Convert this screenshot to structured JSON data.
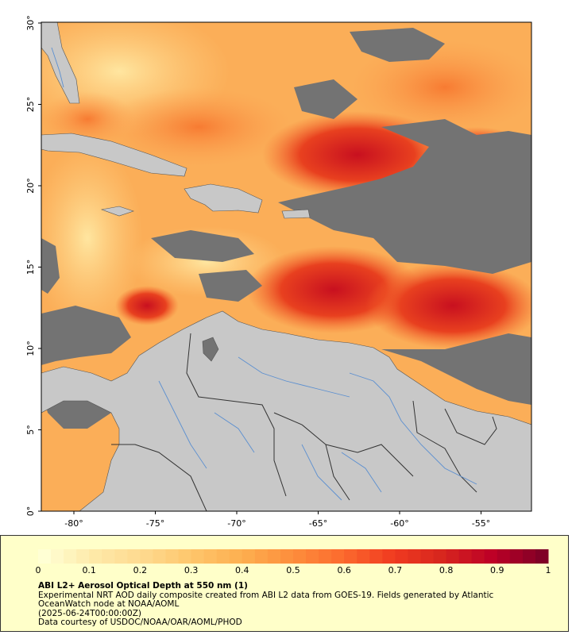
{
  "map": {
    "lon_ticks": [
      "-80°",
      "-75°",
      "-70°",
      "-65°",
      "-60°",
      "-55°"
    ],
    "lat_ticks": [
      "0°",
      "5°",
      "10°",
      "15°",
      "20°",
      "25°",
      "30°"
    ],
    "colors": {
      "land": "#c8c8c8",
      "no_data": "#737373",
      "rivers": "#5b8fd0",
      "borders": "#333333"
    }
  },
  "colorbar": {
    "tick_labels": [
      "0",
      "0.1",
      "0.2",
      "0.3",
      "0.4",
      "0.5",
      "0.6",
      "0.7",
      "0.8",
      "0.9",
      "1"
    ],
    "colors": [
      "#ffffd4",
      "#fee9a8",
      "#fed98e",
      "#fec56a",
      "#fdae4f",
      "#fd8d3c",
      "#fc6a2e",
      "#f03b20",
      "#d7261e",
      "#bd0026",
      "#800026"
    ]
  },
  "legend": {
    "title": "ABI L2+ Aerosol Optical Depth at 550 nm (1)",
    "description_1": "Experimental NRT AOD daily composite created from ABI L2 data from GOES-19. Fields generated by Atlantic",
    "description_2": "OceanWatch node at NOAA/AOML",
    "date": "(2025-06-24T00:00:00Z)",
    "credit": "Data courtesy of USDOC/NOAA/OAR/AOML/PHOD"
  }
}
